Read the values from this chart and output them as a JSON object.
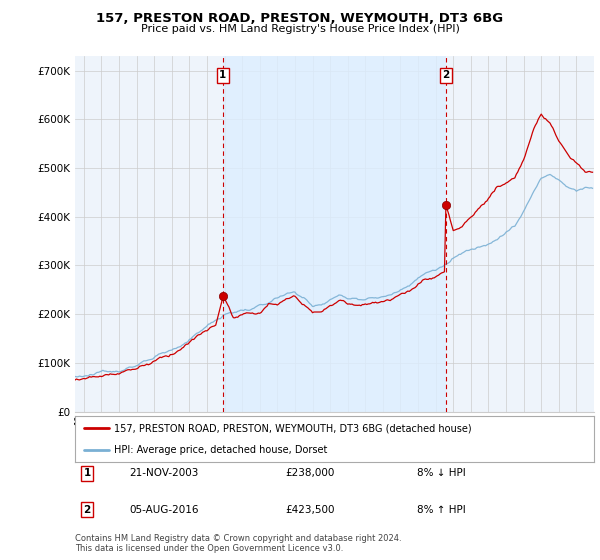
{
  "title": "157, PRESTON ROAD, PRESTON, WEYMOUTH, DT3 6BG",
  "subtitle": "Price paid vs. HM Land Registry's House Price Index (HPI)",
  "ylabel_ticks": [
    "£0",
    "£100K",
    "£200K",
    "£300K",
    "£400K",
    "£500K",
    "£600K",
    "£700K"
  ],
  "ytick_vals": [
    0,
    100000,
    200000,
    300000,
    400000,
    500000,
    600000,
    700000
  ],
  "ylim": [
    0,
    730000
  ],
  "xlim_min": 1995.5,
  "xlim_max": 2025.0,
  "transaction1_x": 2003.9,
  "transaction1_y": 238000,
  "transaction2_x": 2016.58,
  "transaction2_y": 423500,
  "sale1_label": "1",
  "sale2_label": "2",
  "sale1_date": "21-NOV-2003",
  "sale1_price": "£238,000",
  "sale1_hpi": "8% ↓ HPI",
  "sale2_date": "05-AUG-2016",
  "sale2_price": "£423,500",
  "sale2_hpi": "8% ↑ HPI",
  "legend_line1": "157, PRESTON ROAD, PRESTON, WEYMOUTH, DT3 6BG (detached house)",
  "legend_line2": "HPI: Average price, detached house, Dorset",
  "footer": "Contains HM Land Registry data © Crown copyright and database right 2024.\nThis data is licensed under the Open Government Licence v3.0.",
  "line_color_price": "#cc0000",
  "line_color_hpi": "#7ab0d4",
  "dashed_line_color": "#cc0000",
  "shaded_color": "#ddeeff",
  "background_color": "#ffffff",
  "plot_bg_color": "#eef4fb",
  "grid_color": "#ffffff"
}
